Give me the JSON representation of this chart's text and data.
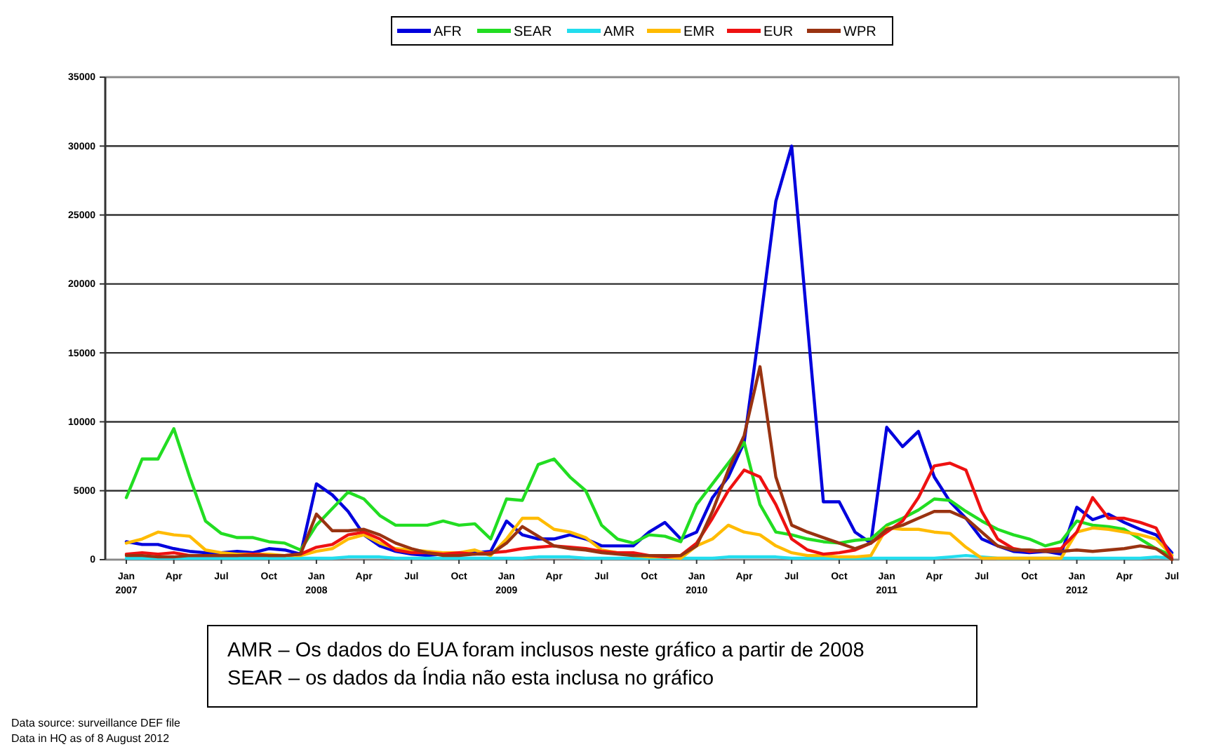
{
  "chart_data": {
    "type": "line",
    "categories": [
      "Jan 2007",
      null,
      null,
      "Apr",
      null,
      null,
      "Jul",
      null,
      null,
      "Oct",
      null,
      null,
      "Jan 2008",
      null,
      null,
      "Apr",
      null,
      null,
      "Jul",
      null,
      null,
      "Oct",
      null,
      null,
      "Jan 2009",
      null,
      null,
      "Apr",
      null,
      null,
      "Jul",
      null,
      null,
      "Oct",
      null,
      null,
      "Jan 2010",
      null,
      null,
      "Apr",
      null,
      null,
      "Jul",
      null,
      null,
      "Oct",
      null,
      null,
      "Jan 2011",
      null,
      null,
      "Apr",
      null,
      null,
      "Jul",
      null,
      null,
      "Oct",
      null,
      null,
      "Jan 2012",
      null,
      null,
      "Apr",
      null,
      null,
      "Jul"
    ],
    "series": [
      {
        "name": "AFR",
        "color": "#0000dd",
        "values": [
          1300,
          1100,
          1100,
          800,
          600,
          500,
          500,
          600,
          500,
          800,
          700,
          400,
          5500,
          4700,
          3500,
          1800,
          1000,
          600,
          400,
          300,
          400,
          500,
          500,
          600,
          2800,
          1800,
          1500,
          1500,
          1800,
          1500,
          1000,
          1000,
          1000,
          2000,
          2700,
          1500,
          2000,
          4500,
          6000,
          8500,
          17000,
          26000,
          30000,
          17000,
          4200,
          4200,
          2000,
          1200,
          9600,
          8200,
          9300,
          6000,
          4200,
          3000,
          1500,
          1000,
          600,
          500,
          600,
          400,
          3800,
          2900,
          3300,
          2700,
          2200,
          1800,
          500
        ]
      },
      {
        "name": "SEAR",
        "color": "#22dd22",
        "values": [
          4500,
          7300,
          7300,
          9500,
          6000,
          2800,
          1900,
          1600,
          1600,
          1300,
          1200,
          700,
          2500,
          3700,
          4900,
          4400,
          3200,
          2500,
          2500,
          2500,
          2800,
          2500,
          2600,
          1500,
          4400,
          4300,
          6900,
          7300,
          6000,
          5000,
          2500,
          1500,
          1200,
          1800,
          1700,
          1300,
          4000,
          5500,
          7000,
          8500,
          4000,
          2000,
          1800,
          1500,
          1300,
          1200,
          1400,
          1500,
          2500,
          3000,
          3600,
          4400,
          4300,
          3500,
          2800,
          2200,
          1800,
          1500,
          1000,
          1300,
          2800,
          2500,
          2400,
          2200,
          1500,
          800,
          300
        ]
      },
      {
        "name": "AMR",
        "color": "#22ddee",
        "values": [
          100,
          100,
          100,
          100,
          100,
          100,
          100,
          100,
          100,
          100,
          100,
          100,
          100,
          100,
          200,
          200,
          200,
          100,
          100,
          100,
          100,
          100,
          100,
          100,
          100,
          100,
          200,
          200,
          200,
          100,
          100,
          100,
          100,
          100,
          100,
          100,
          100,
          100,
          200,
          200,
          200,
          200,
          100,
          100,
          100,
          100,
          100,
          100,
          100,
          100,
          100,
          100,
          200,
          300,
          200,
          100,
          100,
          100,
          100,
          100,
          100,
          100,
          100,
          100,
          100,
          200,
          100
        ]
      },
      {
        "name": "EMR",
        "color": "#ffbb00",
        "values": [
          1200,
          1500,
          2000,
          1800,
          1700,
          700,
          500,
          400,
          400,
          400,
          300,
          300,
          600,
          800,
          1500,
          1800,
          1200,
          800,
          700,
          600,
          500,
          500,
          700,
          300,
          1500,
          3000,
          3000,
          2200,
          2000,
          1600,
          700,
          500,
          300,
          200,
          200,
          100,
          1000,
          1500,
          2500,
          2000,
          1800,
          1000,
          500,
          300,
          300,
          200,
          200,
          300,
          2300,
          2200,
          2200,
          2000,
          1900,
          900,
          100,
          100,
          100,
          100,
          100,
          100,
          2000,
          2300,
          2200,
          2000,
          1800,
          1500,
          300
        ]
      },
      {
        "name": "EUR",
        "color": "#ee1111",
        "values": [
          400,
          500,
          400,
          500,
          300,
          300,
          300,
          300,
          400,
          300,
          300,
          400,
          900,
          1100,
          1800,
          2000,
          1500,
          700,
          500,
          500,
          400,
          500,
          400,
          500,
          600,
          800,
          900,
          1000,
          900,
          800,
          600,
          500,
          500,
          300,
          200,
          300,
          1200,
          3000,
          5000,
          6500,
          6000,
          4000,
          1500,
          700,
          400,
          500,
          700,
          1200,
          2000,
          2800,
          4500,
          6800,
          7000,
          6500,
          3500,
          1500,
          800,
          600,
          700,
          800,
          2000,
          4500,
          3000,
          3000,
          2700,
          2300,
          100
        ]
      },
      {
        "name": "WPR",
        "color": "#993311",
        "values": [
          300,
          300,
          200,
          200,
          300,
          300,
          300,
          300,
          300,
          300,
          300,
          400,
          3300,
          2100,
          2100,
          2200,
          1800,
          1200,
          800,
          500,
          300,
          300,
          400,
          400,
          1200,
          2400,
          1700,
          1000,
          800,
          700,
          500,
          400,
          300,
          300,
          300,
          300,
          1000,
          3500,
          6500,
          9000,
          14000,
          6000,
          2500,
          2000,
          1600,
          1200,
          800,
          1200,
          2200,
          2500,
          3000,
          3500,
          3500,
          3000,
          2000,
          1000,
          700,
          700,
          600,
          600,
          700,
          600,
          700,
          800,
          1000,
          800,
          0
        ]
      }
    ],
    "ylim": [
      0,
      35000
    ],
    "yticks": [
      0,
      5000,
      10000,
      15000,
      20000,
      25000,
      30000,
      35000
    ],
    "grid": "y",
    "legend": "top",
    "marker": "none",
    "line_style": "solid",
    "annotations": [
      "AMR – Os dados do EUA foram inclusos neste gráfico a partir de 2008",
      "SEAR – os dados da Índia não esta inclusa no gráfico",
      "Data source: surveillance DEF file",
      "Data in HQ as of 8 August 2012"
    ]
  }
}
